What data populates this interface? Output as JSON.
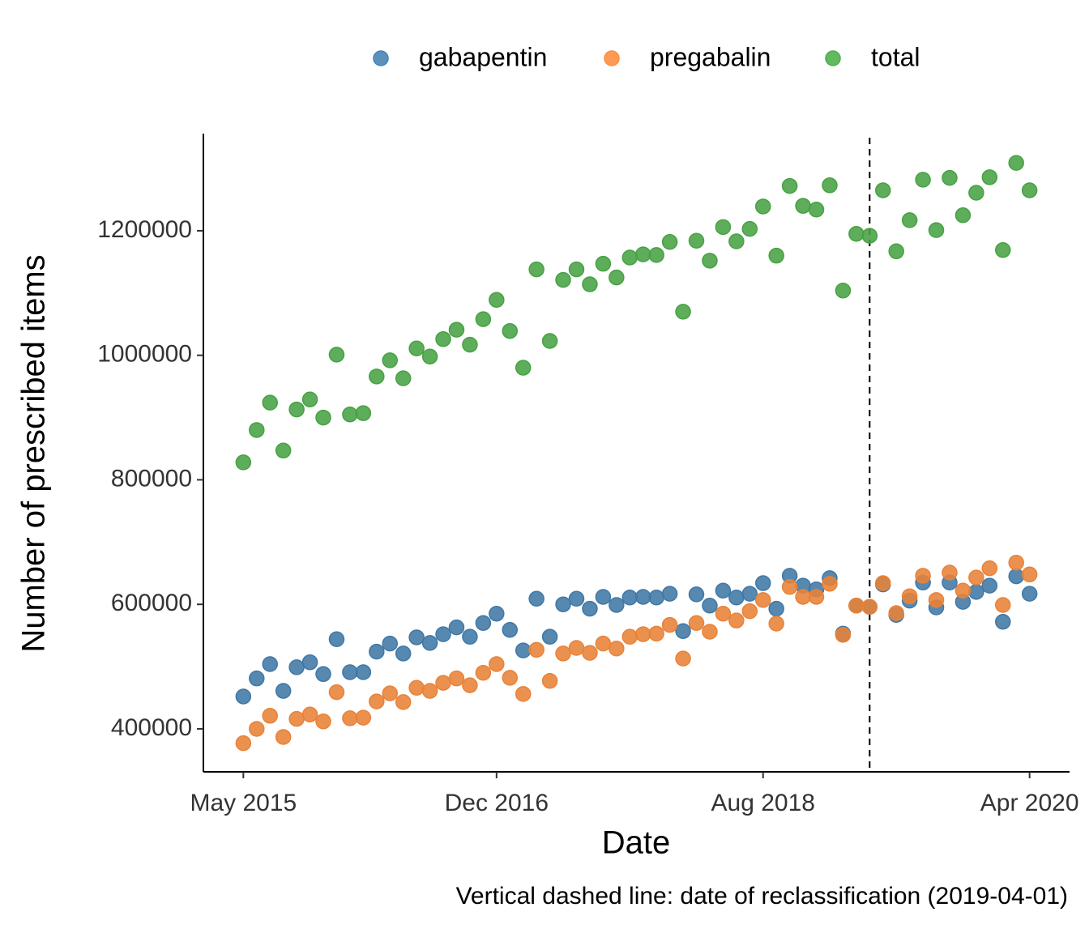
{
  "chart_data": {
    "type": "scatter",
    "x": [
      "2015-05",
      "2015-06",
      "2015-07",
      "2015-08",
      "2015-09",
      "2015-10",
      "2015-11",
      "2015-12",
      "2016-01",
      "2016-02",
      "2016-03",
      "2016-04",
      "2016-05",
      "2016-06",
      "2016-07",
      "2016-08",
      "2016-09",
      "2016-10",
      "2016-11",
      "2016-12",
      "2017-01",
      "2017-02",
      "2017-03",
      "2017-04",
      "2017-05",
      "2017-06",
      "2017-07",
      "2017-08",
      "2017-09",
      "2017-10",
      "2017-11",
      "2017-12",
      "2018-01",
      "2018-02",
      "2018-03",
      "2018-04",
      "2018-05",
      "2018-06",
      "2018-07",
      "2018-08",
      "2018-09",
      "2018-10",
      "2018-11",
      "2018-12",
      "2019-01",
      "2019-02",
      "2019-03",
      "2019-04",
      "2019-05",
      "2019-06",
      "2019-07",
      "2019-08",
      "2019-09",
      "2019-10",
      "2019-11",
      "2019-12",
      "2020-01",
      "2020-02",
      "2020-03",
      "2020-04"
    ],
    "series": [
      {
        "name": "gabapentin",
        "color": "#4682B4",
        "values": [
          452000,
          481000,
          504000,
          461000,
          499000,
          507000,
          488000,
          544000,
          491000,
          491000,
          524000,
          537000,
          521000,
          547000,
          538000,
          552000,
          563000,
          548000,
          570000,
          585000,
          559000,
          526000,
          609000,
          548000,
          600000,
          609000,
          593000,
          612000,
          599000,
          611000,
          612000,
          611000,
          617000,
          557000,
          616000,
          598000,
          622000,
          611000,
          617000,
          634000,
          593000,
          646000,
          630000,
          624000,
          642000,
          553000,
          598000,
          596000,
          632000,
          583000,
          606000,
          635000,
          595000,
          635000,
          604000,
          620000,
          630000,
          572000,
          645000,
          617000
        ]
      },
      {
        "name": "pregabalin",
        "color": "#FD8D3C",
        "values": [
          377000,
          400000,
          421000,
          387000,
          416000,
          423000,
          412000,
          459000,
          417000,
          418000,
          444000,
          457000,
          443000,
          466000,
          461000,
          474000,
          481000,
          470000,
          490000,
          504000,
          482000,
          456000,
          527000,
          477000,
          521000,
          530000,
          522000,
          537000,
          529000,
          548000,
          552000,
          553000,
          567000,
          513000,
          570000,
          556000,
          585000,
          574000,
          589000,
          607000,
          569000,
          628000,
          612000,
          612000,
          633000,
          551000,
          598000,
          596000,
          634000,
          586000,
          613000,
          646000,
          607000,
          651000,
          622000,
          643000,
          658000,
          599000,
          667000,
          648000
        ]
      },
      {
        "name": "total",
        "color": "#4DAF4A",
        "values": [
          828000,
          880000,
          924000,
          847000,
          913000,
          929000,
          900000,
          1001000,
          905000,
          907000,
          966000,
          992000,
          963000,
          1011000,
          998000,
          1026000,
          1041000,
          1017000,
          1058000,
          1089000,
          1039000,
          980000,
          1138000,
          1023000,
          1121000,
          1138000,
          1114000,
          1147000,
          1125000,
          1157000,
          1162000,
          1161000,
          1182000,
          1070000,
          1184000,
          1152000,
          1206000,
          1183000,
          1203000,
          1239000,
          1160000,
          1272000,
          1240000,
          1234000,
          1273000,
          1104000,
          1195000,
          1192000,
          1265000,
          1167000,
          1217000,
          1282000,
          1201000,
          1285000,
          1225000,
          1261000,
          1286000,
          1169000,
          1309000,
          1265000
        ]
      }
    ],
    "xlabel": "Date",
    "ylabel": "Number of prescribed items",
    "xlim": [
      "2015-02",
      "2020-07"
    ],
    "xticks": [
      {
        "value": "2015-05",
        "label": "May 2015"
      },
      {
        "value": "2016-12",
        "label": "Dec 2016"
      },
      {
        "value": "2018-08",
        "label": "Aug 2018"
      },
      {
        "value": "2020-04",
        "label": "Apr 2020"
      }
    ],
    "ylim": [
      331000,
      1356000
    ],
    "yticks": [
      400000,
      600000,
      800000,
      1000000,
      1200000
    ],
    "vline": "2019-04-01",
    "caption": "Vertical dashed line: date of reclassification (2019-04-01)",
    "legend": "top",
    "grid": false
  }
}
